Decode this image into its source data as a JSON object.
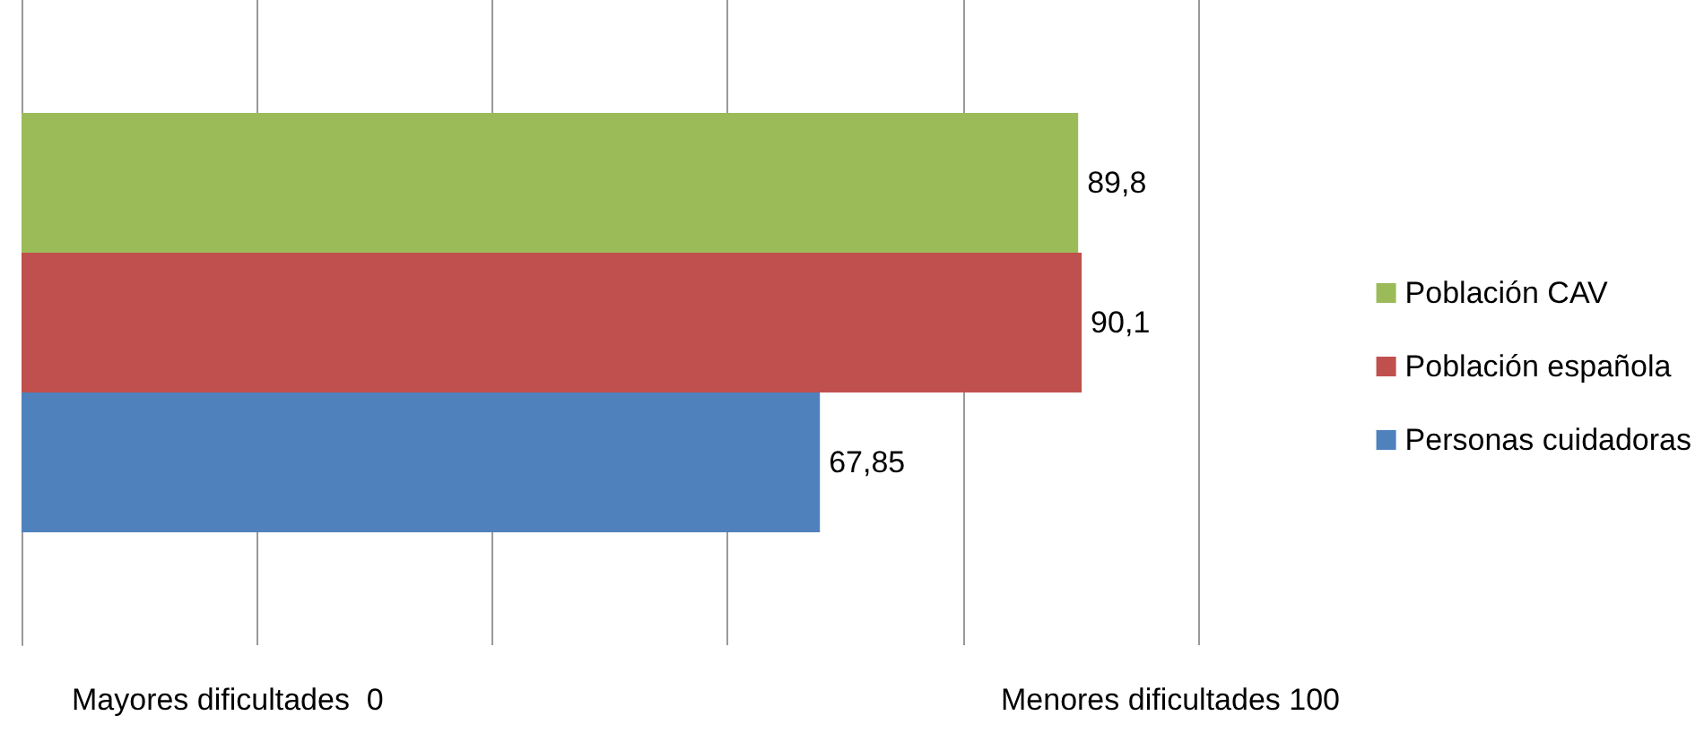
{
  "chart_data": {
    "type": "bar",
    "orientation": "horizontal",
    "categories": [
      null
    ],
    "series": [
      {
        "name": "Población CAV",
        "color": "#9bbb59",
        "values": [
          89.8
        ],
        "value_labels": [
          "89,8"
        ]
      },
      {
        "name": "Población española",
        "color": "#c0504d",
        "values": [
          90.1
        ],
        "value_labels": [
          "90,1"
        ]
      },
      {
        "name": "Personas cuidadoras",
        "color": "#4f81bd",
        "values": [
          67.85
        ],
        "value_labels": [
          "67,85"
        ]
      }
    ],
    "grid": "x",
    "legend": "right",
    "annotations": [
      "Mayores dificultades  0",
      "Menores dificultades 100"
    ]
  }
}
